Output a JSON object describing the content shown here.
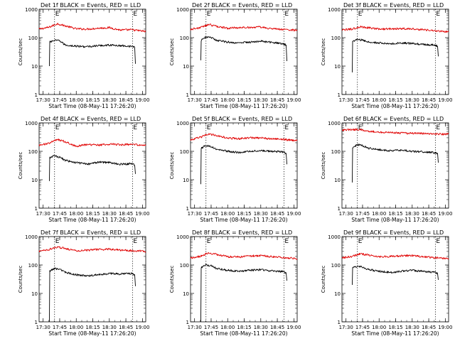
{
  "chart_data": [
    {
      "type": "line",
      "title": "Det 1f BLACK = Events, RED = LLD",
      "xlabel": "Start Time (08-May-11 17:26:20)",
      "ylabel": "Counts/sec",
      "xlim": [
        "17:26:20",
        "19:03:00"
      ],
      "x_ticks": [
        "17:30",
        "17:45",
        "18:00",
        "18:15",
        "18:30",
        "18:45",
        "19:00"
      ],
      "y_scale": "log",
      "ylim": [
        1,
        1000
      ],
      "y_ticks": [
        "1",
        "10",
        "100",
        "1000"
      ],
      "markers": [
        {
          "time": "17:40:20",
          "label": "E"
        },
        {
          "time": "18:51:00",
          "label": "E"
        }
      ],
      "series": [
        {
          "color": "#e00000",
          "x": [
            "17:26:20",
            "17:35:00",
            "17:43:00",
            "17:50:00",
            "18:00:00",
            "18:10:00",
            "18:20:00",
            "18:30:00",
            "18:40:00",
            "18:50:00",
            "19:03:00"
          ],
          "values": [
            200,
            230,
            310,
            260,
            205,
            200,
            215,
            225,
            185,
            190,
            165
          ]
        },
        {
          "color": "#000000",
          "x": [
            "17:35:40",
            "17:36:00",
            "17:40:00",
            "17:45:00",
            "17:50:00",
            "18:00:00",
            "18:10:00",
            "18:20:00",
            "18:30:00",
            "18:40:00",
            "18:50:00",
            "18:53:00",
            "18:53:40"
          ],
          "values": [
            10,
            70,
            80,
            78,
            55,
            50,
            48,
            52,
            55,
            52,
            50,
            45,
            12
          ]
        }
      ]
    },
    {
      "type": "line",
      "title": "Det 2f BLACK = Events, RED = LLD",
      "xlabel": "Start Time (08-May-11 17:26:20)",
      "ylabel": "Counts/sec",
      "xlim": [
        "17:26:20",
        "19:03:00"
      ],
      "x_ticks": [
        "17:30",
        "17:45",
        "18:00",
        "18:15",
        "18:30",
        "18:45",
        "19:00"
      ],
      "y_scale": "log",
      "ylim": [
        1,
        1000
      ],
      "y_ticks": [
        "1",
        "10",
        "100",
        "1000"
      ],
      "markers": [
        {
          "time": "17:40:20",
          "label": "E"
        },
        {
          "time": "18:51:00",
          "label": "E"
        }
      ],
      "series": [
        {
          "color": "#e00000",
          "x": [
            "17:26:20",
            "17:35:00",
            "17:43:00",
            "17:50:00",
            "18:00:00",
            "18:10:00",
            "18:20:00",
            "18:30:00",
            "18:40:00",
            "18:50:00",
            "19:03:00"
          ],
          "values": [
            195,
            225,
            290,
            250,
            215,
            225,
            230,
            235,
            205,
            195,
            180
          ]
        },
        {
          "color": "#000000",
          "x": [
            "17:35:40",
            "17:36:00",
            "17:40:00",
            "17:45:00",
            "17:50:00",
            "18:00:00",
            "18:10:00",
            "18:20:00",
            "18:30:00",
            "18:40:00",
            "18:50:00",
            "18:53:00",
            "18:53:40"
          ],
          "values": [
            16,
            80,
            105,
            100,
            80,
            70,
            65,
            70,
            75,
            68,
            62,
            55,
            15
          ]
        }
      ]
    },
    {
      "type": "line",
      "title": "Det 3f BLACK = Events, RED = LLD",
      "xlabel": "Start Time (08-May-11 17:26:20)",
      "ylabel": "Counts/sec",
      "xlim": [
        "17:26:20",
        "19:03:00"
      ],
      "x_ticks": [
        "17:30",
        "17:45",
        "18:00",
        "18:15",
        "18:30",
        "18:45",
        "19:00"
      ],
      "y_scale": "log",
      "ylim": [
        1,
        1000
      ],
      "y_ticks": [
        "1",
        "10",
        "100",
        "1000"
      ],
      "markers": [
        {
          "time": "17:40:20",
          "label": "E"
        },
        {
          "time": "18:51:00",
          "label": "E"
        }
      ],
      "series": [
        {
          "color": "#e00000",
          "x": [
            "17:26:20",
            "17:35:00",
            "17:43:00",
            "17:50:00",
            "18:00:00",
            "18:10:00",
            "18:20:00",
            "18:30:00",
            "18:40:00",
            "18:50:00",
            "19:03:00"
          ],
          "values": [
            185,
            200,
            240,
            225,
            200,
            205,
            210,
            205,
            190,
            175,
            160
          ]
        },
        {
          "color": "#000000",
          "x": [
            "17:35:40",
            "17:36:00",
            "17:40:00",
            "17:45:00",
            "17:50:00",
            "18:00:00",
            "18:10:00",
            "18:20:00",
            "18:30:00",
            "18:40:00",
            "18:50:00",
            "18:53:00",
            "18:53:40"
          ],
          "values": [
            6,
            75,
            85,
            82,
            70,
            65,
            60,
            65,
            62,
            58,
            55,
            50,
            22
          ]
        }
      ]
    },
    {
      "type": "line",
      "title": "Det 4f BLACK = Events, RED = LLD",
      "xlabel": "Start Time (08-May-11 17:26:20)",
      "ylabel": "Counts/sec",
      "xlim": [
        "17:26:20",
        "19:03:00"
      ],
      "x_ticks": [
        "17:30",
        "17:45",
        "18:00",
        "18:15",
        "18:30",
        "18:45",
        "19:00"
      ],
      "y_scale": "log",
      "ylim": [
        1,
        1000
      ],
      "y_ticks": [
        "1",
        "10",
        "100",
        "1000"
      ],
      "markers": [
        {
          "time": "17:40:20",
          "label": "E"
        },
        {
          "time": "18:51:00",
          "label": "E"
        }
      ],
      "series": [
        {
          "color": "#e00000",
          "x": [
            "17:26:20",
            "17:35:00",
            "17:43:00",
            "17:50:00",
            "18:00:00",
            "18:10:00",
            "18:20:00",
            "18:30:00",
            "18:40:00",
            "18:50:00",
            "19:03:00"
          ],
          "values": [
            165,
            190,
            260,
            220,
            150,
            175,
            165,
            180,
            170,
            175,
            160
          ]
        },
        {
          "color": "#000000",
          "x": [
            "17:35:40",
            "17:36:00",
            "17:40:00",
            "17:45:00",
            "17:50:00",
            "18:00:00",
            "18:10:00",
            "18:20:00",
            "18:30:00",
            "18:40:00",
            "18:50:00",
            "18:53:00",
            "18:53:40"
          ],
          "values": [
            9,
            60,
            70,
            62,
            48,
            40,
            35,
            42,
            40,
            35,
            37,
            32,
            16
          ]
        }
      ]
    },
    {
      "type": "line",
      "title": "Det 5f BLACK = Events, RED = LLD",
      "xlabel": "Start Time (08-May-11 17:26:20)",
      "ylabel": "Counts/sec",
      "xlim": [
        "17:26:20",
        "19:03:00"
      ],
      "x_ticks": [
        "17:30",
        "17:45",
        "18:00",
        "18:15",
        "18:30",
        "18:45",
        "19:00"
      ],
      "y_scale": "log",
      "ylim": [
        1,
        1000
      ],
      "y_ticks": [
        "1",
        "10",
        "100",
        "1000"
      ],
      "markers": [
        {
          "time": "17:40:20",
          "label": "E"
        },
        {
          "time": "18:51:00",
          "label": "E"
        }
      ],
      "series": [
        {
          "color": "#e00000",
          "x": [
            "17:26:20",
            "17:35:00",
            "17:43:00",
            "17:50:00",
            "18:00:00",
            "18:10:00",
            "18:20:00",
            "18:30:00",
            "18:40:00",
            "18:50:00",
            "19:03:00"
          ],
          "values": [
            250,
            310,
            410,
            360,
            290,
            280,
            300,
            295,
            275,
            265,
            235
          ]
        },
        {
          "color": "#000000",
          "x": [
            "17:35:40",
            "17:36:00",
            "17:40:00",
            "17:45:00",
            "17:50:00",
            "18:00:00",
            "18:10:00",
            "18:20:00",
            "18:30:00",
            "18:40:00",
            "18:50:00",
            "18:53:00",
            "18:53:40"
          ],
          "values": [
            7,
            130,
            160,
            150,
            120,
            100,
            90,
            100,
            105,
            100,
            95,
            85,
            35
          ]
        }
      ]
    },
    {
      "type": "line",
      "title": "Det 6f BLACK = Events, RED = LLD",
      "xlabel": "Start Time (08-May-11 17:26:20)",
      "ylabel": "Counts/sec",
      "xlim": [
        "17:26:20",
        "19:03:00"
      ],
      "x_ticks": [
        "17:30",
        "17:45",
        "18:00",
        "18:15",
        "18:30",
        "18:45",
        "19:00"
      ],
      "y_scale": "log",
      "ylim": [
        1,
        1000
      ],
      "y_ticks": [
        "1",
        "10",
        "100",
        "1000"
      ],
      "markers": [
        {
          "time": "17:40:20",
          "label": "E"
        },
        {
          "time": "18:51:00",
          "label": "E"
        }
      ],
      "series": [
        {
          "color": "#e00000",
          "x": [
            "17:26:20",
            "17:35:00",
            "17:43:00",
            "17:50:00",
            "18:00:00",
            "18:10:00",
            "18:20:00",
            "18:30:00",
            "18:40:00",
            "18:50:00",
            "19:03:00"
          ],
          "values": [
            560,
            580,
            590,
            520,
            470,
            460,
            440,
            430,
            420,
            410,
            400
          ]
        },
        {
          "color": "#000000",
          "x": [
            "17:35:40",
            "17:36:00",
            "17:40:00",
            "17:45:00",
            "17:50:00",
            "18:00:00",
            "18:10:00",
            "18:20:00",
            "18:30:00",
            "18:40:00",
            "18:50:00",
            "18:53:00",
            "18:53:40"
          ],
          "values": [
            8,
            130,
            170,
            160,
            130,
            115,
            105,
            110,
            100,
            95,
            90,
            85,
            40
          ]
        }
      ]
    },
    {
      "type": "line",
      "title": "Det 7f BLACK = Events, RED = LLD",
      "xlabel": "Start Time (08-May-11 17:26:20)",
      "ylabel": "Counts/sec",
      "xlim": [
        "17:26:20",
        "19:03:00"
      ],
      "x_ticks": [
        "17:30",
        "17:45",
        "18:00",
        "18:15",
        "18:30",
        "18:45",
        "19:00"
      ],
      "y_scale": "log",
      "ylim": [
        1,
        1000
      ],
      "y_ticks": [
        "1",
        "10",
        "100",
        "1000"
      ],
      "markers": [
        {
          "time": "17:40:20",
          "label": "E"
        },
        {
          "time": "18:51:00",
          "label": "E"
        }
      ],
      "series": [
        {
          "color": "#e00000",
          "x": [
            "17:26:20",
            "17:35:00",
            "17:43:00",
            "17:50:00",
            "18:00:00",
            "18:10:00",
            "18:20:00",
            "18:30:00",
            "18:40:00",
            "18:50:00",
            "19:03:00"
          ],
          "values": [
            300,
            350,
            430,
            380,
            320,
            330,
            350,
            360,
            330,
            320,
            300
          ]
        },
        {
          "color": "#000000",
          "x": [
            "17:35:40",
            "17:36:00",
            "17:40:00",
            "17:45:00",
            "17:50:00",
            "18:00:00",
            "18:10:00",
            "18:20:00",
            "18:30:00",
            "18:40:00",
            "18:50:00",
            "18:53:00",
            "18:53:40"
          ],
          "values": [
            1,
            60,
            75,
            70,
            55,
            45,
            42,
            45,
            50,
            48,
            50,
            45,
            18
          ]
        }
      ]
    },
    {
      "type": "line",
      "title": "Det 8f BLACK = Events, RED = LLD",
      "xlabel": "Start Time (08-May-11 17:26:20)",
      "ylabel": "Counts/sec",
      "xlim": [
        "17:26:20",
        "19:03:00"
      ],
      "x_ticks": [
        "17:30",
        "17:45",
        "18:00",
        "18:15",
        "18:30",
        "18:45",
        "19:00"
      ],
      "y_scale": "log",
      "ylim": [
        1,
        1000
      ],
      "y_ticks": [
        "1",
        "10",
        "100",
        "1000"
      ],
      "markers": [
        {
          "time": "17:40:20",
          "label": "E"
        },
        {
          "time": "18:51:00",
          "label": "E"
        }
      ],
      "series": [
        {
          "color": "#e00000",
          "x": [
            "17:26:20",
            "17:35:00",
            "17:43:00",
            "17:50:00",
            "18:00:00",
            "18:10:00",
            "18:20:00",
            "18:30:00",
            "18:40:00",
            "18:50:00",
            "19:03:00"
          ],
          "values": [
            175,
            200,
            270,
            235,
            195,
            190,
            205,
            215,
            195,
            185,
            165
          ]
        },
        {
          "color": "#000000",
          "x": [
            "17:35:40",
            "17:36:00",
            "17:40:00",
            "17:45:00",
            "17:50:00",
            "18:00:00",
            "18:10:00",
            "18:20:00",
            "18:30:00",
            "18:40:00",
            "18:50:00",
            "18:53:00",
            "18:53:40"
          ],
          "values": [
            1,
            80,
            100,
            95,
            75,
            65,
            60,
            65,
            68,
            62,
            58,
            52,
            28
          ]
        }
      ]
    },
    {
      "type": "line",
      "title": "Det 9f BLACK = Events, RED = LLD",
      "xlabel": "Start Time (08-May-11 17:26:20)",
      "ylabel": "Counts/sec",
      "xlim": [
        "17:26:20",
        "19:03:00"
      ],
      "x_ticks": [
        "17:30",
        "17:45",
        "18:00",
        "18:15",
        "18:30",
        "18:45",
        "19:00"
      ],
      "y_scale": "log",
      "ylim": [
        1,
        1000
      ],
      "y_ticks": [
        "1",
        "10",
        "100",
        "1000"
      ],
      "markers": [
        {
          "time": "17:40:20",
          "label": "E"
        },
        {
          "time": "18:51:00",
          "label": "E"
        }
      ],
      "series": [
        {
          "color": "#e00000",
          "x": [
            "17:26:20",
            "17:35:00",
            "17:43:00",
            "17:50:00",
            "18:00:00",
            "18:10:00",
            "18:20:00",
            "18:30:00",
            "18:40:00",
            "18:50:00",
            "19:03:00"
          ],
          "values": [
            180,
            200,
            245,
            225,
            195,
            200,
            210,
            215,
            195,
            180,
            170
          ]
        },
        {
          "color": "#000000",
          "x": [
            "17:35:40",
            "17:36:00",
            "17:40:00",
            "17:45:00",
            "17:50:00",
            "18:00:00",
            "18:10:00",
            "18:20:00",
            "18:30:00",
            "18:40:00",
            "18:50:00",
            "18:53:00",
            "18:53:40"
          ],
          "values": [
            20,
            78,
            90,
            85,
            70,
            60,
            55,
            60,
            65,
            60,
            55,
            50,
            30
          ]
        }
      ]
    }
  ]
}
